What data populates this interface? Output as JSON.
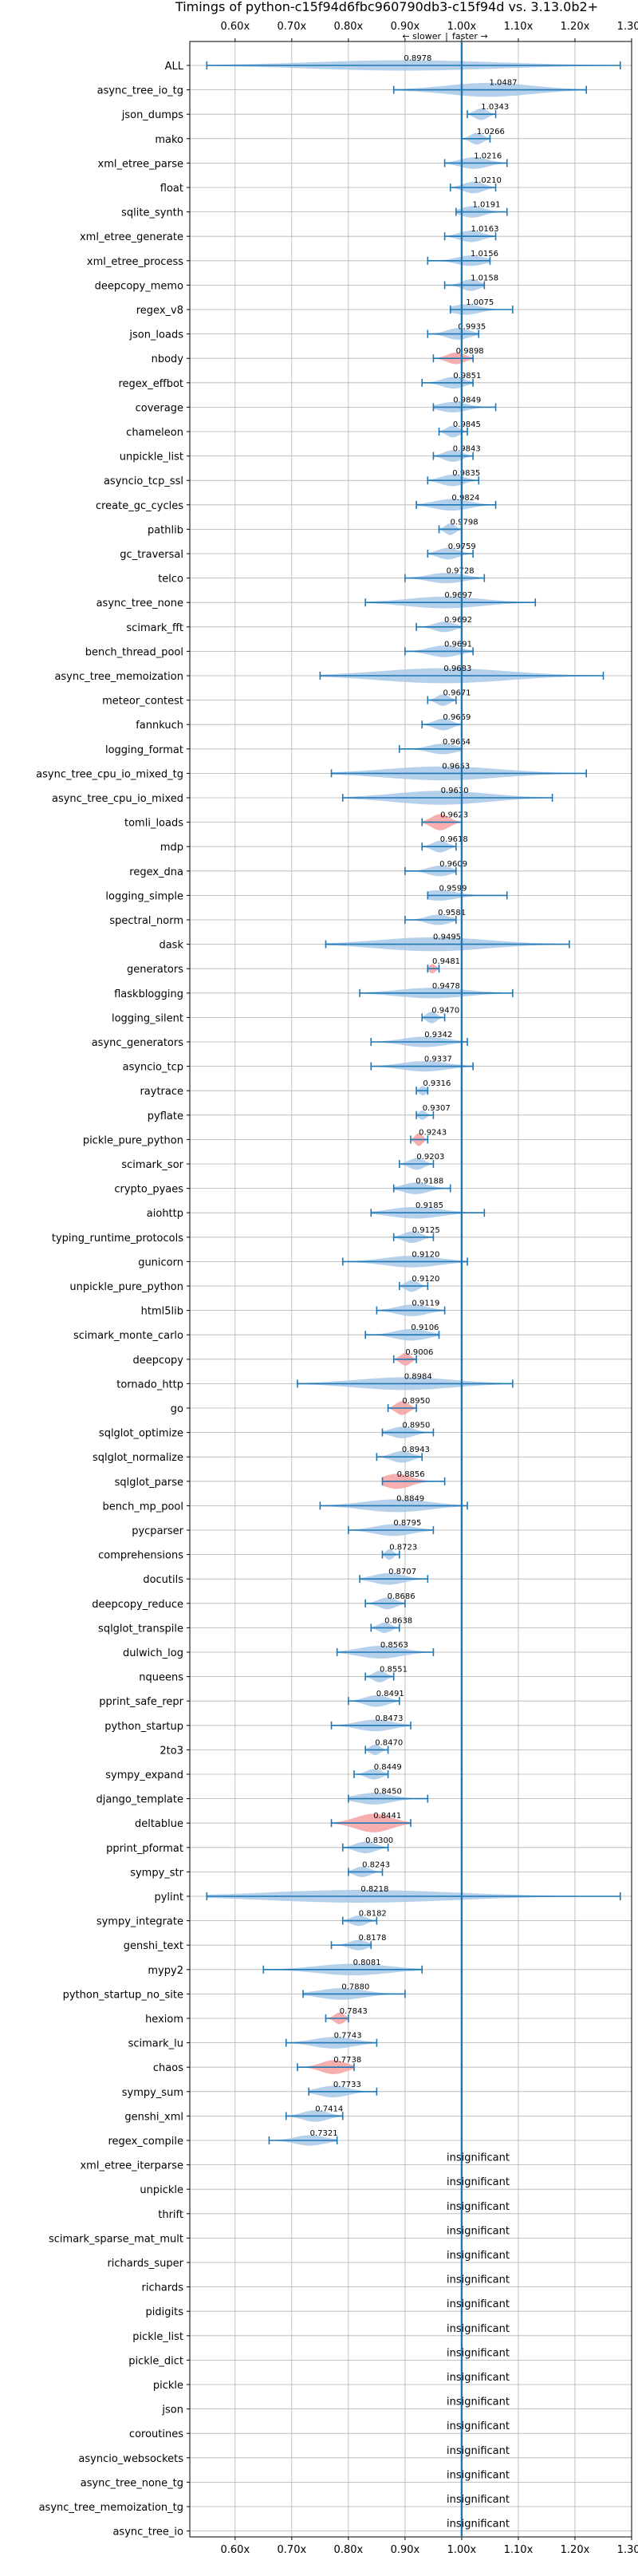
{
  "chart_data": {
    "type": "violin",
    "title": "Timings of python-c15f94d6fbc960790db3-c15f94d vs. 3.13.0b2+",
    "direction_labels": {
      "slower": "← slower",
      "separator": "|",
      "faster": "faster →"
    },
    "xlim": [
      0.52,
      1.3
    ],
    "x_ticks": [
      0.6,
      0.7,
      0.8,
      0.9,
      1.0,
      1.1,
      1.2,
      1.3
    ],
    "x_tick_labels": [
      "0.60x",
      "0.70x",
      "0.80x",
      "0.90x",
      "1.00x",
      "1.10x",
      "1.20x",
      "1.30x"
    ],
    "grid": true,
    "reference_line": 1.0,
    "colors": {
      "significant": "#a8c8e8",
      "highlighted": "#f4a0a0",
      "whisker": "#1f77b4",
      "grid": "#b0b0b0",
      "reference": "#1f77b4"
    },
    "insignificant_label": "insignificant",
    "benchmarks": [
      {
        "name": "ALL",
        "value": 0.8978,
        "label": "0.8978",
        "min": 0.55,
        "max": 1.28,
        "width": 0.45,
        "highlight": false
      },
      {
        "name": "async_tree_io_tg",
        "value": 1.0487,
        "label": "1.0487",
        "min": 0.88,
        "max": 1.22,
        "width": 0.6,
        "highlight": false
      },
      {
        "name": "json_dumps",
        "value": 1.0343,
        "label": "1.0343",
        "min": 1.01,
        "max": 1.06,
        "width": 0.5,
        "highlight": false
      },
      {
        "name": "mako",
        "value": 1.0266,
        "label": "1.0266",
        "min": 1.0,
        "max": 1.05,
        "width": 0.5,
        "highlight": false
      },
      {
        "name": "xml_etree_parse",
        "value": 1.0216,
        "label": "1.0216",
        "min": 0.97,
        "max": 1.08,
        "width": 0.5,
        "highlight": false
      },
      {
        "name": "float",
        "value": 1.021,
        "label": "1.0210",
        "min": 0.98,
        "max": 1.06,
        "width": 0.5,
        "highlight": false
      },
      {
        "name": "sqlite_synth",
        "value": 1.0191,
        "label": "1.0191",
        "min": 0.99,
        "max": 1.08,
        "width": 0.5,
        "highlight": false
      },
      {
        "name": "xml_etree_generate",
        "value": 1.0163,
        "label": "1.0163",
        "min": 0.97,
        "max": 1.06,
        "width": 0.5,
        "highlight": false
      },
      {
        "name": "xml_etree_process",
        "value": 1.0156,
        "label": "1.0156",
        "min": 0.94,
        "max": 1.05,
        "width": 0.45,
        "highlight": false
      },
      {
        "name": "deepcopy_memo",
        "value": 1.0158,
        "label": "1.0158",
        "min": 0.97,
        "max": 1.04,
        "width": 0.5,
        "highlight": false
      },
      {
        "name": "regex_v8",
        "value": 1.0075,
        "label": "1.0075",
        "min": 0.98,
        "max": 1.09,
        "width": 0.45,
        "highlight": false
      },
      {
        "name": "json_loads",
        "value": 0.9935,
        "label": "0.9935",
        "min": 0.94,
        "max": 1.03,
        "width": 0.5,
        "highlight": false
      },
      {
        "name": "nbody",
        "value": 0.9898,
        "label": "0.9898",
        "min": 0.95,
        "max": 1.02,
        "width": 0.5,
        "highlight": true
      },
      {
        "name": "regex_effbot",
        "value": 0.9851,
        "label": "0.9851",
        "min": 0.93,
        "max": 1.02,
        "width": 0.5,
        "highlight": false
      },
      {
        "name": "coverage",
        "value": 0.9849,
        "label": "0.9849",
        "min": 0.95,
        "max": 1.06,
        "width": 0.45,
        "highlight": false
      },
      {
        "name": "chameleon",
        "value": 0.9845,
        "label": "0.9845",
        "min": 0.96,
        "max": 1.01,
        "width": 0.5,
        "highlight": false
      },
      {
        "name": "unpickle_list",
        "value": 0.9843,
        "label": "0.9843",
        "min": 0.95,
        "max": 1.02,
        "width": 0.5,
        "highlight": false
      },
      {
        "name": "asyncio_tcp_ssl",
        "value": 0.9835,
        "label": "0.9835",
        "min": 0.94,
        "max": 1.03,
        "width": 0.5,
        "highlight": false
      },
      {
        "name": "create_gc_cycles",
        "value": 0.9824,
        "label": "0.9824",
        "min": 0.92,
        "max": 1.06,
        "width": 0.5,
        "highlight": false
      },
      {
        "name": "pathlib",
        "value": 0.9798,
        "label": "0.9798",
        "min": 0.96,
        "max": 1.0,
        "width": 0.5,
        "highlight": false
      },
      {
        "name": "gc_traversal",
        "value": 0.9759,
        "label": "0.9759",
        "min": 0.94,
        "max": 1.02,
        "width": 0.5,
        "highlight": false
      },
      {
        "name": "telco",
        "value": 0.9728,
        "label": "0.9728",
        "min": 0.9,
        "max": 1.04,
        "width": 0.45,
        "highlight": false
      },
      {
        "name": "async_tree_none",
        "value": 0.9697,
        "label": "0.9697",
        "min": 0.83,
        "max": 1.13,
        "width": 0.5,
        "highlight": false
      },
      {
        "name": "scimark_fft",
        "value": 0.9692,
        "label": "0.9692",
        "min": 0.92,
        "max": 1.0,
        "width": 0.45,
        "highlight": false
      },
      {
        "name": "bench_thread_pool",
        "value": 0.9691,
        "label": "0.9691",
        "min": 0.9,
        "max": 1.02,
        "width": 0.5,
        "highlight": false
      },
      {
        "name": "async_tree_memoization",
        "value": 0.9683,
        "label": "0.9683",
        "min": 0.75,
        "max": 1.25,
        "width": 0.65,
        "highlight": false
      },
      {
        "name": "meteor_contest",
        "value": 0.9671,
        "label": "0.9671",
        "min": 0.94,
        "max": 0.99,
        "width": 0.5,
        "highlight": false
      },
      {
        "name": "fannkuch",
        "value": 0.9669,
        "label": "0.9669",
        "min": 0.93,
        "max": 1.0,
        "width": 0.5,
        "highlight": false
      },
      {
        "name": "logging_format",
        "value": 0.9664,
        "label": "0.9664",
        "min": 0.89,
        "max": 1.0,
        "width": 0.45,
        "highlight": false
      },
      {
        "name": "async_tree_cpu_io_mixed_tg",
        "value": 0.9653,
        "label": "0.9653",
        "min": 0.77,
        "max": 1.22,
        "width": 0.6,
        "highlight": false
      },
      {
        "name": "async_tree_cpu_io_mixed",
        "value": 0.963,
        "label": "0.9630",
        "min": 0.79,
        "max": 1.16,
        "width": 0.6,
        "highlight": false
      },
      {
        "name": "tomli_loads",
        "value": 0.9623,
        "label": "0.9623",
        "min": 0.93,
        "max": 1.0,
        "width": 0.7,
        "highlight": true
      },
      {
        "name": "mdp",
        "value": 0.9618,
        "label": "0.9618",
        "min": 0.93,
        "max": 0.99,
        "width": 0.5,
        "highlight": false
      },
      {
        "name": "regex_dna",
        "value": 0.9609,
        "label": "0.9609",
        "min": 0.9,
        "max": 0.99,
        "width": 0.45,
        "highlight": false
      },
      {
        "name": "logging_simple",
        "value": 0.9599,
        "label": "0.9599",
        "min": 0.94,
        "max": 1.08,
        "width": 0.45,
        "highlight": false
      },
      {
        "name": "spectral_norm",
        "value": 0.9581,
        "label": "0.9581",
        "min": 0.9,
        "max": 0.99,
        "width": 0.45,
        "highlight": false
      },
      {
        "name": "dask",
        "value": 0.9495,
        "label": "0.9495",
        "min": 0.76,
        "max": 1.19,
        "width": 0.6,
        "highlight": false
      },
      {
        "name": "generators",
        "value": 0.9481,
        "label": "0.9481",
        "min": 0.94,
        "max": 0.96,
        "width": 0.4,
        "highlight": true
      },
      {
        "name": "flaskblogging",
        "value": 0.9478,
        "label": "0.9478",
        "min": 0.82,
        "max": 1.09,
        "width": 0.45,
        "highlight": false
      },
      {
        "name": "logging_silent",
        "value": 0.947,
        "label": "0.9470",
        "min": 0.93,
        "max": 0.97,
        "width": 0.5,
        "highlight": false
      },
      {
        "name": "async_generators",
        "value": 0.9342,
        "label": "0.9342",
        "min": 0.84,
        "max": 1.01,
        "width": 0.45,
        "highlight": false
      },
      {
        "name": "asyncio_tcp",
        "value": 0.9337,
        "label": "0.9337",
        "min": 0.84,
        "max": 1.02,
        "width": 0.45,
        "highlight": false
      },
      {
        "name": "raytrace",
        "value": 0.9316,
        "label": "0.9316",
        "min": 0.92,
        "max": 0.94,
        "width": 0.4,
        "highlight": false
      },
      {
        "name": "pyflate",
        "value": 0.9307,
        "label": "0.9307",
        "min": 0.92,
        "max": 0.95,
        "width": 0.4,
        "highlight": false
      },
      {
        "name": "pickle_pure_python",
        "value": 0.9243,
        "label": "0.9243",
        "min": 0.91,
        "max": 0.94,
        "width": 0.55,
        "highlight": true
      },
      {
        "name": "scimark_sor",
        "value": 0.9203,
        "label": "0.9203",
        "min": 0.89,
        "max": 0.95,
        "width": 0.5,
        "highlight": false
      },
      {
        "name": "crypto_pyaes",
        "value": 0.9188,
        "label": "0.9188",
        "min": 0.88,
        "max": 0.98,
        "width": 0.5,
        "highlight": false
      },
      {
        "name": "aiohttp",
        "value": 0.9185,
        "label": "0.9185",
        "min": 0.84,
        "max": 1.04,
        "width": 0.5,
        "highlight": false
      },
      {
        "name": "typing_runtime_protocols",
        "value": 0.9125,
        "label": "0.9125",
        "min": 0.88,
        "max": 0.95,
        "width": 0.5,
        "highlight": false
      },
      {
        "name": "gunicorn",
        "value": 0.912,
        "label": "0.9120",
        "min": 0.79,
        "max": 1.01,
        "width": 0.5,
        "highlight": false
      },
      {
        "name": "unpickle_pure_python",
        "value": 0.912,
        "label": "0.9120",
        "min": 0.89,
        "max": 0.94,
        "width": 0.5,
        "highlight": false
      },
      {
        "name": "html5lib",
        "value": 0.9119,
        "label": "0.9119",
        "min": 0.85,
        "max": 0.97,
        "width": 0.5,
        "highlight": false
      },
      {
        "name": "scimark_monte_carlo",
        "value": 0.9106,
        "label": "0.9106",
        "min": 0.83,
        "max": 0.96,
        "width": 0.5,
        "highlight": false
      },
      {
        "name": "deepcopy",
        "value": 0.9006,
        "label": "0.9006",
        "min": 0.88,
        "max": 0.92,
        "width": 0.55,
        "highlight": true
      },
      {
        "name": "tornado_http",
        "value": 0.8984,
        "label": "0.8984",
        "min": 0.71,
        "max": 1.09,
        "width": 0.55,
        "highlight": false
      },
      {
        "name": "go",
        "value": 0.895,
        "label": "0.8950",
        "min": 0.87,
        "max": 0.92,
        "width": 0.6,
        "highlight": true
      },
      {
        "name": "sqlglot_optimize",
        "value": 0.895,
        "label": "0.8950",
        "min": 0.86,
        "max": 0.95,
        "width": 0.5,
        "highlight": false
      },
      {
        "name": "sqlglot_normalize",
        "value": 0.8943,
        "label": "0.8943",
        "min": 0.85,
        "max": 0.93,
        "width": 0.5,
        "highlight": false
      },
      {
        "name": "sqlglot_parse",
        "value": 0.8856,
        "label": "0.8856",
        "min": 0.86,
        "max": 0.97,
        "width": 0.65,
        "highlight": true
      },
      {
        "name": "bench_mp_pool",
        "value": 0.8849,
        "label": "0.8849",
        "min": 0.75,
        "max": 1.01,
        "width": 0.55,
        "highlight": false
      },
      {
        "name": "pycparser",
        "value": 0.8795,
        "label": "0.8795",
        "min": 0.8,
        "max": 0.95,
        "width": 0.5,
        "highlight": false
      },
      {
        "name": "comprehensions",
        "value": 0.8723,
        "label": "0.8723",
        "min": 0.86,
        "max": 0.89,
        "width": 0.45,
        "highlight": false
      },
      {
        "name": "docutils",
        "value": 0.8707,
        "label": "0.8707",
        "min": 0.82,
        "max": 0.94,
        "width": 0.5,
        "highlight": false
      },
      {
        "name": "deepcopy_reduce",
        "value": 0.8686,
        "label": "0.8686",
        "min": 0.83,
        "max": 0.9,
        "width": 0.5,
        "highlight": false
      },
      {
        "name": "sqlglot_transpile",
        "value": 0.8638,
        "label": "0.8638",
        "min": 0.84,
        "max": 0.89,
        "width": 0.45,
        "highlight": false
      },
      {
        "name": "dulwich_log",
        "value": 0.8563,
        "label": "0.8563",
        "min": 0.78,
        "max": 0.95,
        "width": 0.55,
        "highlight": false
      },
      {
        "name": "nqueens",
        "value": 0.8551,
        "label": "0.8551",
        "min": 0.83,
        "max": 0.88,
        "width": 0.5,
        "highlight": false
      },
      {
        "name": "pprint_safe_repr",
        "value": 0.8491,
        "label": "0.8491",
        "min": 0.8,
        "max": 0.89,
        "width": 0.5,
        "highlight": false
      },
      {
        "name": "python_startup",
        "value": 0.8473,
        "label": "0.8473",
        "min": 0.77,
        "max": 0.91,
        "width": 0.5,
        "highlight": false
      },
      {
        "name": "2to3",
        "value": 0.847,
        "label": "0.8470",
        "min": 0.83,
        "max": 0.87,
        "width": 0.45,
        "highlight": false
      },
      {
        "name": "sympy_expand",
        "value": 0.8449,
        "label": "0.8449",
        "min": 0.81,
        "max": 0.87,
        "width": 0.45,
        "highlight": false
      },
      {
        "name": "django_template",
        "value": 0.845,
        "label": "0.8450",
        "min": 0.8,
        "max": 0.94,
        "width": 0.5,
        "highlight": false
      },
      {
        "name": "deltablue",
        "value": 0.8441,
        "label": "0.8441",
        "min": 0.77,
        "max": 0.91,
        "width": 0.8,
        "highlight": true
      },
      {
        "name": "pprint_pformat",
        "value": 0.83,
        "label": "0.8300",
        "min": 0.79,
        "max": 0.87,
        "width": 0.5,
        "highlight": false
      },
      {
        "name": "sympy_str",
        "value": 0.8243,
        "label": "0.8243",
        "min": 0.8,
        "max": 0.86,
        "width": 0.45,
        "highlight": false
      },
      {
        "name": "pylint",
        "value": 0.8218,
        "label": "0.8218",
        "min": 0.55,
        "max": 1.28,
        "width": 0.55,
        "highlight": false
      },
      {
        "name": "sympy_integrate",
        "value": 0.8182,
        "label": "0.8182",
        "min": 0.79,
        "max": 0.85,
        "width": 0.45,
        "highlight": false
      },
      {
        "name": "genshi_text",
        "value": 0.8178,
        "label": "0.8178",
        "min": 0.77,
        "max": 0.84,
        "width": 0.45,
        "highlight": false
      },
      {
        "name": "mypy2",
        "value": 0.8081,
        "label": "0.8081",
        "min": 0.65,
        "max": 0.93,
        "width": 0.5,
        "highlight": false
      },
      {
        "name": "python_startup_no_site",
        "value": 0.788,
        "label": "0.7880",
        "min": 0.72,
        "max": 0.9,
        "width": 0.5,
        "highlight": false
      },
      {
        "name": "hexiom",
        "value": 0.7843,
        "label": "0.7843",
        "min": 0.76,
        "max": 0.8,
        "width": 0.5,
        "highlight": true
      },
      {
        "name": "scimark_lu",
        "value": 0.7743,
        "label": "0.7743",
        "min": 0.69,
        "max": 0.85,
        "width": 0.5,
        "highlight": false
      },
      {
        "name": "chaos",
        "value": 0.7738,
        "label": "0.7738",
        "min": 0.71,
        "max": 0.81,
        "width": 0.6,
        "highlight": true
      },
      {
        "name": "sympy_sum",
        "value": 0.7733,
        "label": "0.7733",
        "min": 0.73,
        "max": 0.85,
        "width": 0.5,
        "highlight": false
      },
      {
        "name": "genshi_xml",
        "value": 0.7414,
        "label": "0.7414",
        "min": 0.69,
        "max": 0.79,
        "width": 0.5,
        "highlight": false
      },
      {
        "name": "regex_compile",
        "value": 0.7321,
        "label": "0.7321",
        "min": 0.66,
        "max": 0.78,
        "width": 0.45,
        "highlight": false
      }
    ],
    "insignificant": [
      "xml_etree_iterparse",
      "unpickle",
      "thrift",
      "scimark_sparse_mat_mult",
      "richards_super",
      "richards",
      "pidigits",
      "pickle_list",
      "pickle_dict",
      "pickle",
      "json",
      "coroutines",
      "asyncio_websockets",
      "async_tree_none_tg",
      "async_tree_memoization_tg",
      "async_tree_io"
    ]
  }
}
